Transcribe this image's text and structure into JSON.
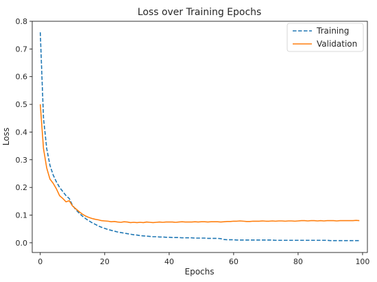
{
  "chart_data": {
    "type": "line",
    "title": "Loss over Training Epochs",
    "xlabel": "Epochs",
    "ylabel": "Loss",
    "xlim": [
      -2.5,
      101.5
    ],
    "ylim": [
      -0.035,
      0.8
    ],
    "xticks": [
      0,
      20,
      40,
      60,
      80,
      100
    ],
    "yticks": [
      0.0,
      0.1,
      0.2,
      0.3,
      0.4,
      0.5,
      0.6,
      0.7,
      0.8
    ],
    "grid": false,
    "legend": "top-right",
    "series": [
      {
        "name": "Training",
        "color": "#1f77b4",
        "style": "dashed",
        "x": [
          0,
          1,
          2,
          3,
          4,
          5,
          6,
          7,
          8,
          9,
          10,
          11,
          12,
          13,
          14,
          15,
          16,
          17,
          18,
          19,
          20,
          21,
          22,
          23,
          24,
          25,
          26,
          27,
          28,
          29,
          30,
          31,
          32,
          33,
          34,
          35,
          36,
          37,
          38,
          39,
          40,
          41,
          42,
          43,
          44,
          45,
          46,
          47,
          48,
          49,
          50,
          51,
          52,
          53,
          54,
          55,
          56,
          57,
          58,
          59,
          60,
          61,
          62,
          63,
          64,
          65,
          66,
          67,
          68,
          69,
          70,
          71,
          72,
          73,
          74,
          75,
          76,
          77,
          78,
          79,
          80,
          81,
          82,
          83,
          84,
          85,
          86,
          87,
          88,
          89,
          90,
          91,
          92,
          93,
          94,
          95,
          96,
          97,
          98,
          99
        ],
        "values": [
          0.76,
          0.45,
          0.34,
          0.28,
          0.245,
          0.22,
          0.2,
          0.185,
          0.17,
          0.16,
          0.135,
          0.12,
          0.108,
          0.097,
          0.088,
          0.08,
          0.073,
          0.067,
          0.061,
          0.056,
          0.052,
          0.048,
          0.045,
          0.042,
          0.039,
          0.037,
          0.035,
          0.033,
          0.031,
          0.029,
          0.028,
          0.026,
          0.025,
          0.024,
          0.023,
          0.022,
          0.022,
          0.021,
          0.021,
          0.02,
          0.02,
          0.019,
          0.019,
          0.019,
          0.018,
          0.018,
          0.018,
          0.018,
          0.017,
          0.017,
          0.017,
          0.017,
          0.016,
          0.016,
          0.016,
          0.016,
          0.015,
          0.012,
          0.011,
          0.011,
          0.011,
          0.01,
          0.01,
          0.01,
          0.01,
          0.01,
          0.01,
          0.01,
          0.01,
          0.01,
          0.01,
          0.01,
          0.01,
          0.009,
          0.009,
          0.009,
          0.009,
          0.009,
          0.009,
          0.009,
          0.009,
          0.009,
          0.009,
          0.009,
          0.009,
          0.009,
          0.009,
          0.009,
          0.009,
          0.009,
          0.008,
          0.008,
          0.008,
          0.008,
          0.008,
          0.008,
          0.008,
          0.008,
          0.008,
          0.008
        ]
      },
      {
        "name": "Validation",
        "color": "#ff7f0e",
        "style": "solid",
        "x": [
          0,
          1,
          2,
          3,
          4,
          5,
          6,
          7,
          8,
          9,
          10,
          11,
          12,
          13,
          14,
          15,
          16,
          17,
          18,
          19,
          20,
          21,
          22,
          23,
          24,
          25,
          26,
          27,
          28,
          29,
          30,
          31,
          32,
          33,
          34,
          35,
          36,
          37,
          38,
          39,
          40,
          41,
          42,
          43,
          44,
          45,
          46,
          47,
          48,
          49,
          50,
          51,
          52,
          53,
          54,
          55,
          56,
          57,
          58,
          59,
          60,
          61,
          62,
          63,
          64,
          65,
          66,
          67,
          68,
          69,
          70,
          71,
          72,
          73,
          74,
          75,
          76,
          77,
          78,
          79,
          80,
          81,
          82,
          83,
          84,
          85,
          86,
          87,
          88,
          89,
          90,
          91,
          92,
          93,
          94,
          95,
          96,
          97,
          98,
          99
        ],
        "values": [
          0.5,
          0.34,
          0.27,
          0.23,
          0.215,
          0.195,
          0.17,
          0.16,
          0.148,
          0.152,
          0.133,
          0.123,
          0.113,
          0.104,
          0.097,
          0.092,
          0.088,
          0.085,
          0.083,
          0.08,
          0.079,
          0.078,
          0.076,
          0.077,
          0.075,
          0.074,
          0.076,
          0.075,
          0.073,
          0.074,
          0.073,
          0.074,
          0.073,
          0.075,
          0.074,
          0.073,
          0.074,
          0.075,
          0.074,
          0.075,
          0.075,
          0.075,
          0.074,
          0.075,
          0.076,
          0.075,
          0.075,
          0.075,
          0.076,
          0.075,
          0.076,
          0.076,
          0.075,
          0.076,
          0.076,
          0.076,
          0.075,
          0.076,
          0.077,
          0.077,
          0.078,
          0.078,
          0.079,
          0.078,
          0.077,
          0.077,
          0.078,
          0.078,
          0.078,
          0.079,
          0.078,
          0.078,
          0.079,
          0.078,
          0.079,
          0.079,
          0.078,
          0.079,
          0.079,
          0.078,
          0.079,
          0.08,
          0.08,
          0.079,
          0.08,
          0.08,
          0.079,
          0.08,
          0.079,
          0.08,
          0.08,
          0.08,
          0.079,
          0.08,
          0.08,
          0.08,
          0.08,
          0.08,
          0.081,
          0.08
        ]
      }
    ]
  }
}
